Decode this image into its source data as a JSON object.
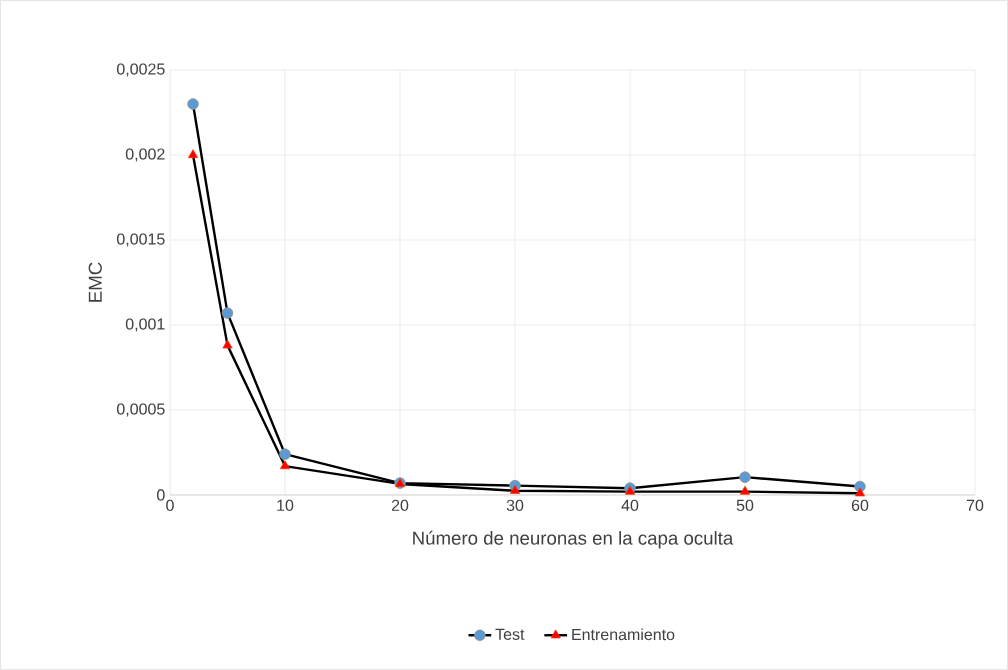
{
  "chart_data": {
    "type": "line",
    "xlabel": "Número de neuronas en la capa oculta",
    "ylabel": "EMC",
    "x": [
      2,
      5,
      10,
      20,
      30,
      40,
      50,
      60
    ],
    "series": [
      {
        "name": "Test",
        "color": "#5b9bd5",
        "marker": "circle",
        "values": [
          0.0023,
          0.00107,
          0.00024,
          7e-05,
          5.5e-05,
          4e-05,
          0.000105,
          5e-05
        ]
      },
      {
        "name": "Entrenamiento",
        "color": "#ff0000",
        "marker": "triangle",
        "values": [
          0.002,
          0.00088,
          0.00017,
          6.5e-05,
          2.5e-05,
          2e-05,
          2e-05,
          1e-05
        ]
      }
    ],
    "xlim": [
      0,
      70
    ],
    "xticks": [
      0,
      10,
      20,
      30,
      40,
      50,
      60,
      70
    ],
    "ylim": [
      0,
      0.0025
    ],
    "yticks": [
      0,
      {
        "value": 0.0005,
        "label": "0,0005"
      },
      {
        "value": 0.001,
        "label": "0,001"
      },
      {
        "value": 0.0015,
        "label": "0,0015"
      },
      {
        "value": 0.002,
        "label": "0,002"
      },
      {
        "value": 0.0025,
        "label": "0,0025"
      }
    ],
    "grid": true,
    "legend": "bottom",
    "line_style": "solid"
  }
}
